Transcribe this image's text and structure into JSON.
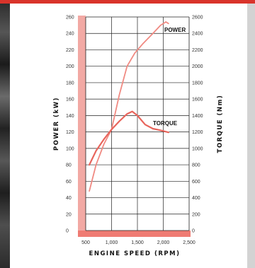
{
  "colors": {
    "accent": "#d9342b",
    "line": "#e8655c",
    "power_line": "#f08a82",
    "band": "#f2a9a4",
    "bottom_band": "#ef7b73"
  },
  "chart_data": {
    "type": "line",
    "xlabel": "ENGINE SPEED (RPM)",
    "ylabel_left": "POWER (kW)",
    "ylabel_right": "TORQUE (Nm)",
    "x_ticks": [
      "500",
      "1,000",
      "1,500",
      "2,000",
      "2,500"
    ],
    "xlim": [
      500,
      2500
    ],
    "y_left_ticks": [
      "260",
      "240",
      "220",
      "200",
      "180",
      "160",
      "140",
      "120",
      "100",
      "80",
      "60",
      "40",
      "20",
      "0"
    ],
    "y_right_ticks": [
      "2600",
      "2400",
      "2200",
      "2000",
      "1800",
      "1600",
      "1400",
      "1200",
      "1000",
      "800",
      "600",
      "400",
      "200",
      "0"
    ],
    "ylim_left": [
      0,
      260
    ],
    "ylim_right": [
      0,
      2600
    ],
    "grid": true,
    "series": [
      {
        "name": "POWER",
        "axis": "left",
        "x": [
          570,
          700,
          850,
          1000,
          1150,
          1300,
          1450,
          1600,
          1800,
          1950,
          2050,
          2100
        ],
        "y": [
          48,
          80,
          105,
          123,
          165,
          200,
          216,
          227,
          240,
          250,
          254,
          252
        ]
      },
      {
        "name": "TORQUE",
        "axis": "right",
        "x": [
          570,
          700,
          850,
          1000,
          1150,
          1300,
          1400,
          1500,
          1650,
          1800,
          1950,
          2100
        ],
        "y": [
          800,
          970,
          1110,
          1230,
          1330,
          1420,
          1450,
          1400,
          1290,
          1240,
          1220,
          1195
        ]
      }
    ]
  }
}
